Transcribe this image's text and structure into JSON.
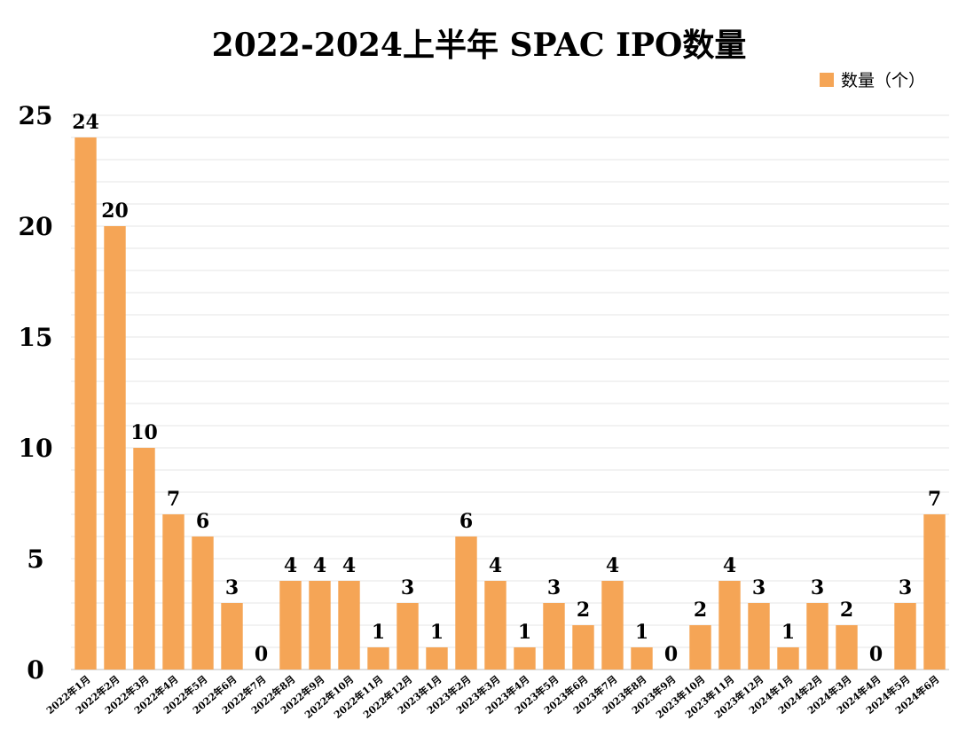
{
  "chart_data": {
    "type": "bar",
    "title": "2022-2024上半年 SPAC IPO数量",
    "xlabel": "",
    "ylabel": "",
    "ylim": [
      0,
      25
    ],
    "yticks": [
      0,
      5,
      10,
      15,
      20,
      25
    ],
    "grid": true,
    "legend_position": "top-right",
    "categories": [
      "2022年1月",
      "2022年2月",
      "2022年3月",
      "2022年4月",
      "2022年5月",
      "2022年6月",
      "2022年7月",
      "2022年8月",
      "2022年9月",
      "2022年10月",
      "2022年11月",
      "2022年12月",
      "2023年1月",
      "2023年2月",
      "2023年3月",
      "2023年4月",
      "2023年5月",
      "2023年6月",
      "2023年7月",
      "2023年8月",
      "2023年9月",
      "2023年10月",
      "2023年11月",
      "2023年12月",
      "2024年1月",
      "2024年2月",
      "2024年3月",
      "2024年4月",
      "2024年5月",
      "2024年6月"
    ],
    "series": [
      {
        "name": "数量（个）",
        "color": "#F5A556",
        "values": [
          24,
          20,
          10,
          7,
          6,
          3,
          0,
          4,
          4,
          4,
          1,
          3,
          1,
          6,
          4,
          1,
          3,
          2,
          4,
          1,
          0,
          2,
          4,
          3,
          1,
          3,
          2,
          0,
          3,
          7
        ]
      }
    ]
  }
}
